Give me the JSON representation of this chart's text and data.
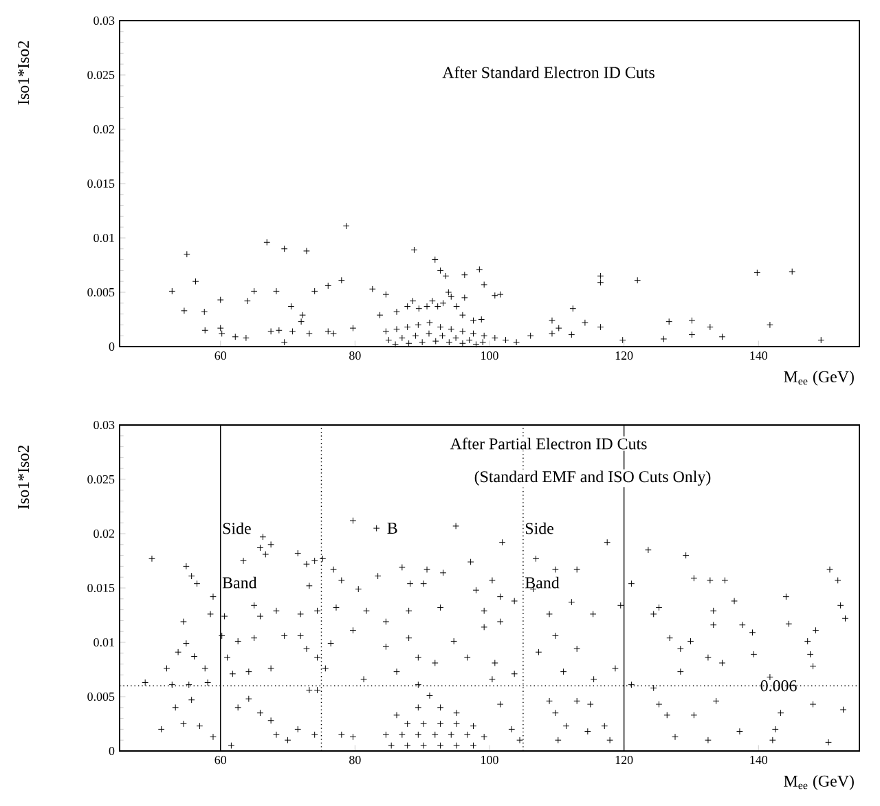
{
  "chart_data": [
    {
      "type": "scatter",
      "title": "After Standard Electron ID Cuts",
      "xlabel": "M$_{ee}$ (GeV)",
      "ylabel": "Iso1*Iso2",
      "color": "#000000",
      "marker": "cross",
      "xlim": [
        45,
        155
      ],
      "ylim": [
        0,
        0.03
      ],
      "xticks": [
        60,
        80,
        100,
        120,
        140
      ],
      "yticks": [
        0,
        0.005,
        0.01,
        0.015,
        0.02,
        0.025,
        0.03
      ],
      "x": [
        52.8,
        55.0,
        56.3,
        54.6,
        57.6,
        60.0,
        64.0,
        65.0,
        66.9,
        68.3,
        69.5,
        70.5,
        72.8,
        74.0,
        76.0,
        78.0,
        78.7,
        82.6,
        84.6,
        88.8,
        91.9,
        92.7,
        93.5,
        96.3,
        98.5,
        99.2,
        100.8,
        101.6,
        93.9,
        94.3,
        96.3,
        116.5,
        116.5,
        122.0,
        112.4,
        114.2,
        116.5,
        109.3,
        110.3,
        109.3,
        112.2,
        106.1,
        126.7,
        130.1,
        130.1,
        132.8,
        134.6,
        139.8,
        145.0,
        141.7,
        149.3,
        119.8,
        125.9,
        57.7,
        60.0,
        60.2,
        62.2,
        63.8,
        67.5,
        68.7,
        72.0,
        72.2,
        70.7,
        73.2,
        76.0,
        76.8,
        79.7,
        69.5,
        83.7,
        86.2,
        87.8,
        88.6,
        89.5,
        90.7,
        91.5,
        92.3,
        93.1,
        95.1,
        96.0,
        97.6,
        98.8,
        84.6,
        86.2,
        87.8,
        89.4,
        91.1,
        92.7,
        94.3,
        96.0,
        97.6,
        99.2,
        100.8,
        102.4,
        104.0,
        85.0,
        87.0,
        89.0,
        91.0,
        93.0,
        95.0,
        97.0,
        99.0,
        86.0,
        88.0,
        90.0,
        92.0,
        94.0,
        96.0,
        98.0
      ],
      "values": [
        0.0051,
        0.0085,
        0.006,
        0.0033,
        0.0032,
        0.0043,
        0.0042,
        0.0051,
        0.0096,
        0.0051,
        0.009,
        0.0037,
        0.0088,
        0.0051,
        0.0056,
        0.0061,
        0.0111,
        0.0053,
        0.0048,
        0.0089,
        0.008,
        0.007,
        0.0065,
        0.0066,
        0.0071,
        0.0057,
        0.0047,
        0.0048,
        0.005,
        0.0046,
        0.0045,
        0.0065,
        0.0059,
        0.0061,
        0.0035,
        0.0022,
        0.0018,
        0.0024,
        0.0017,
        0.0012,
        0.0011,
        0.001,
        0.0023,
        0.0024,
        0.0011,
        0.0018,
        0.0009,
        0.0068,
        0.0069,
        0.002,
        0.0006,
        0.0006,
        0.0007,
        0.0015,
        0.0017,
        0.0012,
        0.0009,
        0.0008,
        0.0014,
        0.0015,
        0.0023,
        0.0029,
        0.0014,
        0.0012,
        0.0014,
        0.0012,
        0.0017,
        0.0004,
        0.0029,
        0.0032,
        0.0037,
        0.0042,
        0.0035,
        0.0037,
        0.0042,
        0.0037,
        0.004,
        0.0037,
        0.0029,
        0.0024,
        0.0025,
        0.0014,
        0.0016,
        0.0018,
        0.002,
        0.0022,
        0.0018,
        0.0016,
        0.0014,
        0.0012,
        0.001,
        0.0008,
        0.0006,
        0.0004,
        0.0006,
        0.0008,
        0.001,
        0.0012,
        0.001,
        0.0008,
        0.0006,
        0.0004,
        0.0002,
        0.0003,
        0.0004,
        0.0005,
        0.0004,
        0.0003,
        0.0002
      ]
    },
    {
      "type": "scatter",
      "title": "After Partial Electron ID Cuts",
      "subtitle": "(Standard EMF and ISO Cuts Only)",
      "xlabel": "M$_{ee}$ (GeV)",
      "ylabel": "Iso1*Iso2",
      "color": "#000000",
      "marker": "cross",
      "xlim": [
        45,
        155
      ],
      "ylim": [
        0,
        0.03
      ],
      "xticks": [
        60,
        80,
        100,
        120,
        140
      ],
      "yticks": [
        0,
        0.005,
        0.01,
        0.015,
        0.02,
        0.025,
        0.03
      ],
      "ref_lines": [
        {
          "axis": "x",
          "value": 60,
          "line_style": "solid"
        },
        {
          "axis": "x",
          "value": 75,
          "line_style": "dotted"
        },
        {
          "axis": "x",
          "value": 105,
          "line_style": "dotted"
        },
        {
          "axis": "x",
          "value": 120,
          "line_style": "solid"
        },
        {
          "axis": "y",
          "value": 0.006,
          "line_style": "dotted"
        }
      ],
      "annotations": [
        {
          "text": "Side",
          "x": 60,
          "y": 0.0205
        },
        {
          "text": "Band",
          "x": 60,
          "y": 0.0155
        },
        {
          "text": "B",
          "x": 84.5,
          "y": 0.0205
        },
        {
          "text": "Side",
          "x": 105,
          "y": 0.0205
        },
        {
          "text": "Band",
          "x": 105,
          "y": 0.0155
        },
        {
          "text": "0.006",
          "x": 140,
          "y": 0.006
        }
      ],
      "x": [
        49.8,
        48.8,
        52.0,
        51.2,
        54.9,
        55.7,
        56.5,
        54.5,
        53.7,
        54.9,
        56.1,
        55.7,
        53.3,
        54.5,
        56.9,
        52.8,
        55.3,
        58.1,
        58.5,
        58.9,
        57.7,
        58.9,
        60.6,
        60.2,
        61.0,
        61.6,
        63.4,
        65.0,
        65.9,
        66.7,
        67.5,
        66.3,
        71.5,
        68.3,
        65.9,
        69.5,
        65.0,
        62.6,
        64.2,
        61.8,
        67.5,
        62.6,
        64.2,
        65.9,
        67.5,
        68.3,
        70.0,
        71.5,
        71.9,
        71.9,
        72.8,
        72.8,
        74.0,
        75.2,
        73.2,
        74.4,
        74.4,
        73.2,
        74.4,
        74.0,
        75.6,
        76.4,
        77.2,
        76.8,
        78.0,
        79.7,
        80.5,
        79.7,
        78.0,
        81.3,
        79.7,
        83.2,
        83.4,
        81.7,
        84.6,
        87.0,
        88.2,
        90.2,
        90.7,
        93.1,
        95.0,
        97.2,
        98.0,
        100.4,
        101.9,
        101.6,
        103.7,
        88.0,
        88.0,
        92.7,
        94.7,
        99.2,
        101.6,
        99.2,
        89.4,
        91.9,
        96.7,
        100.8,
        103.7,
        100.4,
        86.2,
        89.4,
        84.6,
        91.1,
        89.4,
        92.7,
        95.1,
        86.2,
        87.8,
        90.2,
        92.7,
        95.1,
        97.6,
        84.6,
        87.0,
        89.4,
        91.9,
        94.3,
        96.7,
        99.2,
        85.4,
        87.8,
        90.2,
        92.7,
        95.1,
        97.6,
        101.6,
        103.3,
        104.5,
        106.9,
        106.5,
        109.8,
        113.0,
        112.2,
        115.4,
        108.9,
        113.0,
        109.8,
        107.3,
        111.0,
        115.5,
        108.9,
        113.0,
        115.0,
        109.8,
        111.4,
        114.6,
        117.1,
        117.9,
        110.2,
        117.5,
        119.5,
        118.7,
        121.1,
        121.1,
        123.6,
        124.4,
        125.2,
        124.4,
        125.2,
        126.4,
        126.8,
        128.4,
        129.9,
        129.2,
        130.4,
        132.8,
        133.3,
        133.3,
        132.5,
        133.7,
        130.4,
        128.4,
        127.6,
        132.5,
        134.6,
        135.0,
        136.4,
        137.6,
        139.1,
        139.3,
        137.2,
        142.1,
        142.5,
        143.3,
        144.1,
        144.5,
        147.3,
        147.7,
        148.1,
        148.5,
        148.1,
        150.4,
        150.6,
        151.8,
        152.2,
        152.9,
        152.6,
        141.7
      ],
      "values": [
        0.0177,
        0.0063,
        0.0076,
        0.002,
        0.017,
        0.0161,
        0.0154,
        0.0119,
        0.0091,
        0.0099,
        0.0087,
        0.0047,
        0.004,
        0.0025,
        0.0023,
        0.0061,
        0.0061,
        0.0063,
        0.0126,
        0.0142,
        0.0076,
        0.0013,
        0.0124,
        0.0106,
        0.0086,
        0.0005,
        0.0175,
        0.0134,
        0.0187,
        0.0181,
        0.019,
        0.0197,
        0.0182,
        0.0129,
        0.0124,
        0.0106,
        0.0104,
        0.0101,
        0.0073,
        0.0071,
        0.0076,
        0.004,
        0.0048,
        0.0035,
        0.0028,
        0.0015,
        0.001,
        0.002,
        0.0126,
        0.0106,
        0.0094,
        0.0172,
        0.0175,
        0.0177,
        0.0152,
        0.0129,
        0.0086,
        0.0056,
        0.0056,
        0.0015,
        0.0076,
        0.0099,
        0.0132,
        0.0167,
        0.0157,
        0.0111,
        0.0149,
        0.0013,
        0.0015,
        0.0066,
        0.0212,
        0.0205,
        0.0161,
        0.0129,
        0.0119,
        0.0169,
        0.0154,
        0.0154,
        0.0167,
        0.0164,
        0.0207,
        0.0174,
        0.0148,
        0.0157,
        0.0192,
        0.0142,
        0.0138,
        0.0129,
        0.0104,
        0.0132,
        0.0101,
        0.0129,
        0.0119,
        0.0114,
        0.0086,
        0.0081,
        0.0086,
        0.0081,
        0.0071,
        0.0066,
        0.0073,
        0.0061,
        0.0096,
        0.0051,
        0.004,
        0.004,
        0.0035,
        0.0033,
        0.0025,
        0.0025,
        0.0025,
        0.0025,
        0.0023,
        0.0015,
        0.0015,
        0.0015,
        0.0015,
        0.0015,
        0.0015,
        0.0013,
        0.0005,
        0.0005,
        0.0005,
        0.0005,
        0.0005,
        0.0005,
        0.0043,
        0.002,
        0.001,
        0.0177,
        0.0149,
        0.0167,
        0.0167,
        0.0137,
        0.0126,
        0.0126,
        0.0094,
        0.0106,
        0.0091,
        0.0073,
        0.0066,
        0.0046,
        0.0046,
        0.0043,
        0.0035,
        0.0023,
        0.0018,
        0.0023,
        0.001,
        0.001,
        0.0192,
        0.0134,
        0.0076,
        0.0154,
        0.0061,
        0.0185,
        0.0126,
        0.0132,
        0.0058,
        0.0043,
        0.0033,
        0.0104,
        0.0094,
        0.0101,
        0.018,
        0.0159,
        0.0157,
        0.0116,
        0.0129,
        0.0086,
        0.0046,
        0.0033,
        0.0073,
        0.0013,
        0.001,
        0.0081,
        0.0157,
        0.0138,
        0.0116,
        0.0109,
        0.0089,
        0.0018,
        0.001,
        0.002,
        0.0035,
        0.0142,
        0.0117,
        0.0101,
        0.0089,
        0.0078,
        0.0111,
        0.0043,
        0.0008,
        0.0167,
        0.0157,
        0.0134,
        0.0122,
        0.0038,
        0.0068
      ]
    }
  ]
}
